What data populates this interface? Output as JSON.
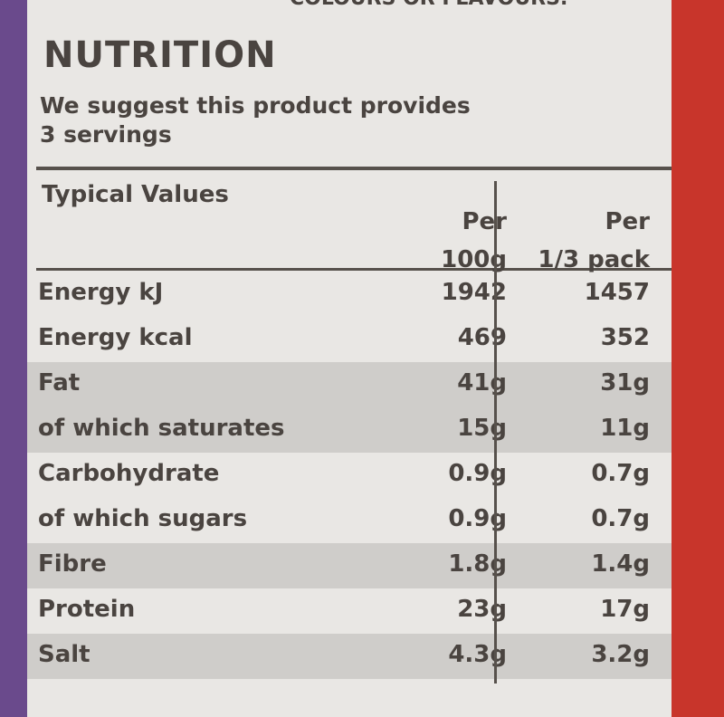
{
  "top_text": "COLOURS OR FLAVOURS.",
  "header": {
    "title": "NUTRITION",
    "subtitle_lines": [
      "We suggest this product provides",
      "3 servings"
    ]
  },
  "table": {
    "columns": [
      [
        "Typical Values"
      ],
      [
        "Per",
        "100g"
      ],
      [
        "Per",
        "1/3 pack"
      ]
    ],
    "groups": [
      [
        [
          "Energy kJ",
          "1942",
          "1457"
        ],
        [
          "Energy kcal",
          "469",
          "352"
        ]
      ],
      [
        [
          "Fat",
          "41g",
          "31g"
        ],
        [
          "of which saturates",
          "15g",
          "11g"
        ]
      ],
      [
        [
          "Carbohydrate",
          "0.9g",
          "0.7g"
        ],
        [
          "of which sugars",
          "0.9g",
          "0.7g"
        ]
      ],
      [
        [
          "Fibre",
          "1.8g",
          "1.4g"
        ]
      ],
      [
        [
          "Protein",
          "23g",
          "17g"
        ]
      ],
      [
        [
          "Salt",
          "4.3g",
          "3.2g"
        ]
      ]
    ]
  }
}
